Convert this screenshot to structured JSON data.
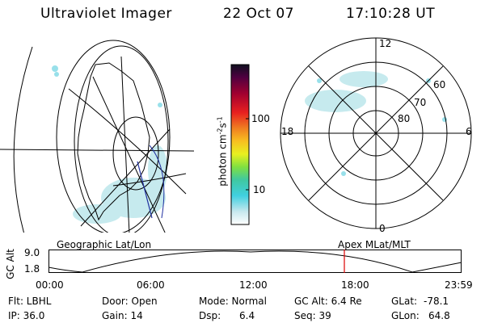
{
  "header": {
    "title": "Ultraviolet Imager",
    "date": "22 Oct 07",
    "time": "17:10:28 UT"
  },
  "colorbar": {
    "unit_label": "photon cm",
    "unit_exp1": "-2",
    "unit_mid": "s",
    "unit_exp2": "-1",
    "tick_labels": [
      "100",
      "10"
    ]
  },
  "polar": {
    "mlt_labels": {
      "top": "12",
      "left": "18",
      "right": "6",
      "bottom": "0"
    },
    "lat_labels": [
      "60",
      "70",
      "80"
    ]
  },
  "timeline": {
    "y_axis_label": "GC Alt",
    "y_ticks": [
      "9.0",
      "1.8"
    ],
    "left_caption": "Geographic Lat/Lon",
    "right_caption": "Apex MLat/MLT",
    "x_ticks": [
      "00:00",
      "06:00",
      "12:00",
      "18:00",
      "23:59"
    ],
    "marker_color": "#dd0000",
    "curve_color": "#000000"
  },
  "info": {
    "flt": "Flt: LBHL",
    "ip": "IP: 36.0",
    "door": "Door: Open",
    "gain": "Gain: 14",
    "mode": "Mode: Normal",
    "dsp_label": "Dsp:",
    "dsp_value": "6.4",
    "gc_alt": "GC Alt: 6.4 Re",
    "seq": "Seq: 39",
    "glat_label": "GLat:",
    "glat_value": "-78.1",
    "glon_label": "GLon:",
    "glon_value": "64.8"
  },
  "colors": {
    "background": "#ffffff",
    "aurora": "#7fd9e6",
    "line": "#000000",
    "sat_track": "#2030a0"
  }
}
